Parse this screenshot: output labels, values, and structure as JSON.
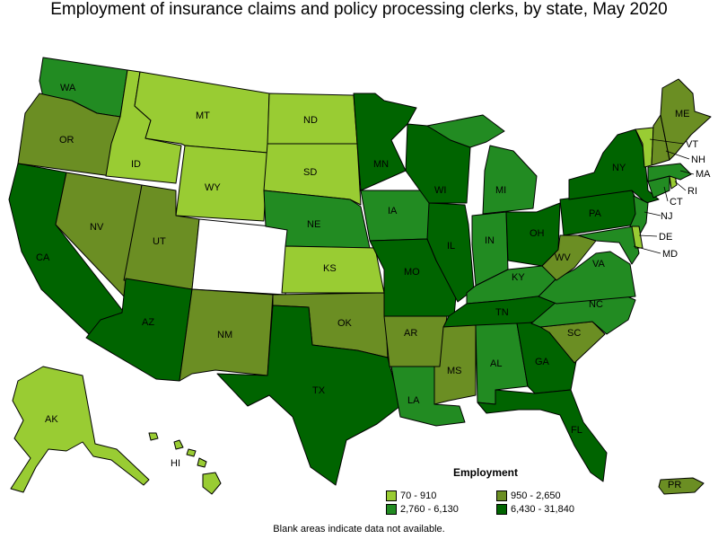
{
  "title": "Employment of insurance claims and policy processing clerks, by state, May 2020",
  "legend": {
    "title": "Employment",
    "items": [
      {
        "range": "70 - 910",
        "color": "#99cc33"
      },
      {
        "range": "950 - 2,650",
        "color": "#6b8e23"
      },
      {
        "range": "2,760 - 6,130",
        "color": "#228b22"
      },
      {
        "range": "6,430 - 31,840",
        "color": "#006400"
      }
    ]
  },
  "no_data_color": "#ffffff",
  "footnote": "Blank areas indicate data not available.",
  "states": {
    "WA": 3,
    "OR": 2,
    "CA": 4,
    "NV": 2,
    "ID": 1,
    "MT": 1,
    "WY": 1,
    "UT": 2,
    "AZ": 4,
    "CO": 0,
    "NM": 2,
    "ND": 1,
    "SD": 1,
    "NE": 3,
    "KS": 1,
    "OK": 2,
    "TX": 4,
    "MN": 4,
    "IA": 3,
    "MO": 4,
    "AR": 2,
    "LA": 3,
    "WI": 4,
    "IL": 4,
    "MI": 3,
    "IN": 3,
    "OH": 4,
    "KY": 3,
    "TN": 4,
    "MS": 2,
    "AL": 3,
    "GA": 4,
    "FL": 4,
    "SC": 2,
    "NC": 3,
    "VA": 3,
    "WV": 2,
    "PA": 4,
    "NY": 4,
    "ME": 2,
    "VT": 1,
    "NH": 2,
    "MA": 3,
    "CT": 3,
    "RI": 1,
    "NJ": 3,
    "DE": 1,
    "MD": 3,
    "AK": 1,
    "HI": 1,
    "PR": 2
  },
  "state_labels": [
    "WA",
    "OR",
    "CA",
    "NV",
    "ID",
    "MT",
    "WY",
    "UT",
    "AZ",
    "NM",
    "ND",
    "SD",
    "NE",
    "KS",
    "OK",
    "TX",
    "MN",
    "IA",
    "MO",
    "AR",
    "LA",
    "WI",
    "IL",
    "MI",
    "IN",
    "OH",
    "KY",
    "TN",
    "MS",
    "AL",
    "GA",
    "FL",
    "SC",
    "NC",
    "VA",
    "WV",
    "PA",
    "NY",
    "ME",
    "VT",
    "NH",
    "MA",
    "CT",
    "RI",
    "NJ",
    "DE",
    "MD",
    "AK",
    "HI",
    "PR"
  ]
}
